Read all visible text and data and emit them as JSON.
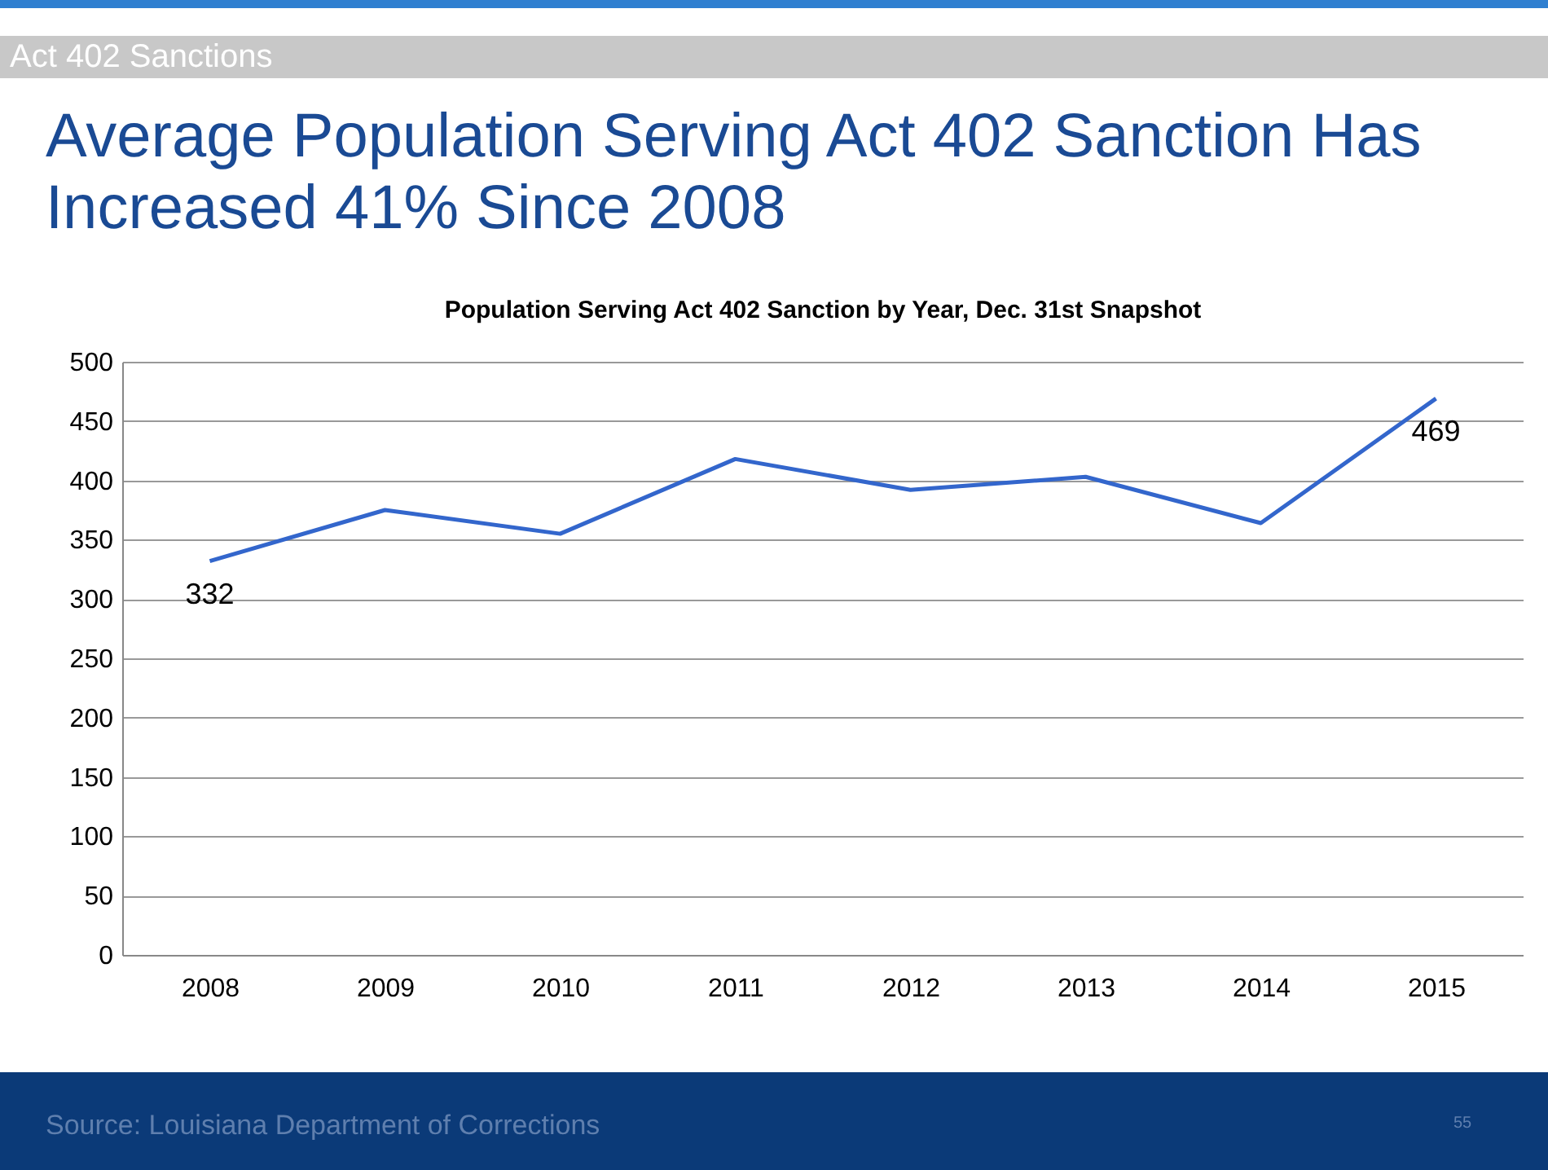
{
  "chart_data": {
    "type": "line",
    "title": "Average Population Serving Act 402 Sanction Has Increased 41% Since 2008",
    "subtitle": "Population Serving Act 402 Sanction by Year, Dec. 31st Snapshot",
    "annotations": [
      "Act 402 Sanctions",
      "Source: Louisiana Department of Corrections",
      "55"
    ],
    "categories": [
      "2008",
      "2009",
      "2010",
      "2011",
      "2012",
      "2013",
      "2014",
      "2015"
    ],
    "series": [
      {
        "color": "#3366cc",
        "values": [
          332,
          375,
          355,
          418,
          392,
          403,
          364,
          469
        ],
        "value_labels": [
          "332",
          null,
          null,
          null,
          null,
          null,
          null,
          "469"
        ]
      }
    ],
    "ylim": [
      0,
      500
    ],
    "yticks": [
      0,
      50,
      100,
      150,
      200,
      250,
      300,
      350,
      400,
      450,
      500
    ],
    "grid": "y",
    "marker": "none",
    "line_style": "solid"
  }
}
